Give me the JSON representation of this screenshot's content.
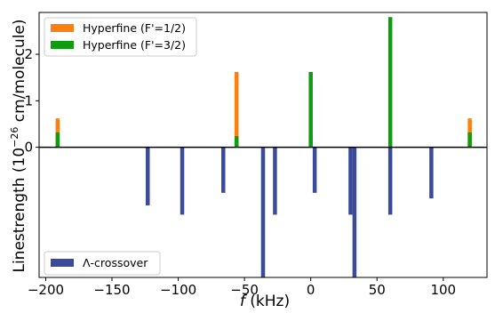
{
  "chart_data": {
    "type": "bar",
    "xlabel_italic": "f",
    "xlabel_unit": " (kHz)",
    "ylabel": "Linestrength (10",
    "ylabel_exp": "−26",
    "ylabel_tail": " cm/molecule)",
    "xlim": [
      -205,
      133
    ],
    "ylim": [
      -2.8,
      2.9
    ],
    "x_ticks": [
      -200,
      -150,
      -100,
      -50,
      0,
      50,
      100
    ],
    "x_tick_labels": [
      "−200",
      "−150",
      "−100",
      "−50",
      "0",
      "50",
      "100"
    ],
    "y_ticks": [
      0,
      1,
      2
    ],
    "y_tick_labels": [
      "0",
      "1",
      "2"
    ],
    "grid": false,
    "series": [
      {
        "name": "Hyperfine (F'=1/2)",
        "color": "#ff7f0e",
        "points": [
          {
            "x": -191,
            "y": 0.62
          },
          {
            "x": -56,
            "y": 1.62
          },
          {
            "x": 0,
            "y": 0.25
          },
          {
            "x": 120,
            "y": 0.62
          }
        ]
      },
      {
        "name": "Hyperfine (F'=3/2)",
        "color": "#109c10",
        "points": [
          {
            "x": -191,
            "y": 0.32
          },
          {
            "x": -56,
            "y": 0.24
          },
          {
            "x": 0,
            "y": 1.62
          },
          {
            "x": 60,
            "y": 2.8
          },
          {
            "x": 120,
            "y": 0.32
          }
        ]
      },
      {
        "name": "Λ-crossover",
        "color": "#3b4a9a",
        "points": [
          {
            "x": -123,
            "y": -1.25
          },
          {
            "x": -97,
            "y": -1.45
          },
          {
            "x": -66,
            "y": -0.98
          },
          {
            "x": -36,
            "y": -2.8
          },
          {
            "x": -27,
            "y": -1.45
          },
          {
            "x": 3,
            "y": -0.98
          },
          {
            "x": 30,
            "y": -1.45
          },
          {
            "x": 33,
            "y": -2.8
          },
          {
            "x": 60,
            "y": -1.45
          },
          {
            "x": 91,
            "y": -1.1
          }
        ]
      }
    ],
    "legend_upper": {
      "placement": "top-left",
      "series": [
        0,
        1
      ]
    },
    "legend_lower": {
      "placement": "bottom-left",
      "series": [
        2
      ]
    }
  }
}
